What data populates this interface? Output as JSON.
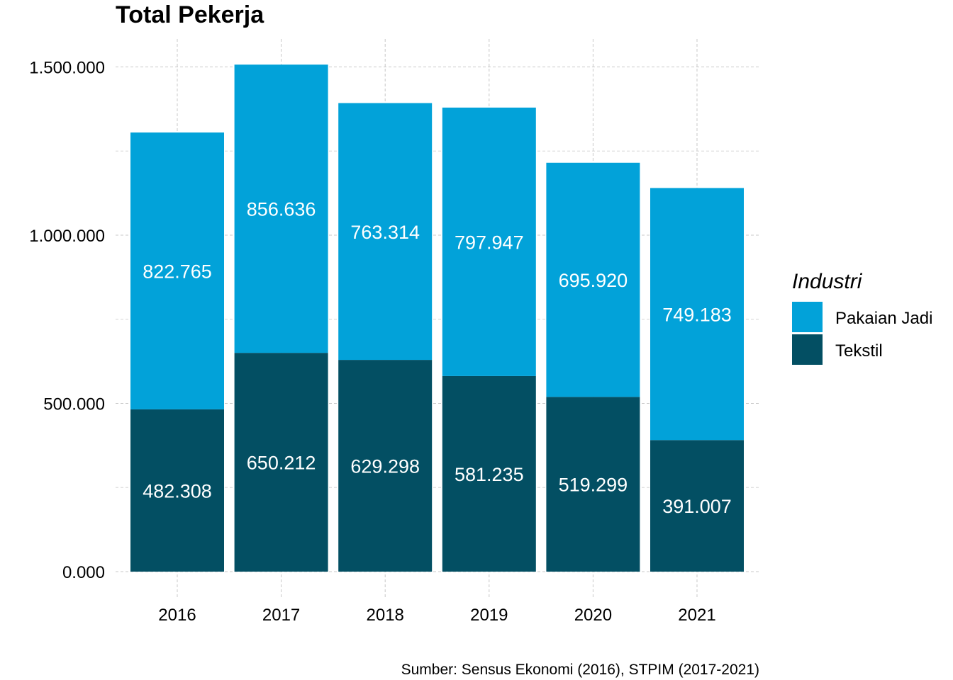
{
  "chart_data": {
    "type": "bar",
    "stacked": true,
    "title": "Total Pekerja",
    "xlabel": "",
    "ylabel": "",
    "categories": [
      "2016",
      "2017",
      "2018",
      "2019",
      "2020",
      "2021"
    ],
    "series": [
      {
        "name": "Tekstil",
        "color": "#034f63",
        "values": [
          482308,
          650212,
          629298,
          581235,
          519299,
          391007
        ],
        "labels": [
          "482.308",
          "650.212",
          "629.298",
          "581.235",
          "519.299",
          "391.007"
        ]
      },
      {
        "name": "Pakaian Jadi",
        "color": "#02a2d9",
        "values": [
          822765,
          856636,
          763314,
          797947,
          695920,
          749183
        ],
        "labels": [
          "822.765",
          "856.636",
          "763.314",
          "797.947",
          "695.920",
          "749.183"
        ]
      }
    ],
    "ylim": [
      0,
      1500000
    ],
    "yticks": [
      0,
      500000,
      1000000,
      1500000
    ],
    "ytick_labels": [
      "0.000",
      "500.000",
      "1.000.000",
      "1.500.000"
    ],
    "grid": true,
    "legend": {
      "title": "Industri",
      "position": "right",
      "entries": [
        "Pakaian Jadi",
        "Tekstil"
      ]
    },
    "caption": "Sumber: Sensus Ekonomi (2016), STPIM (2017-2021)"
  }
}
